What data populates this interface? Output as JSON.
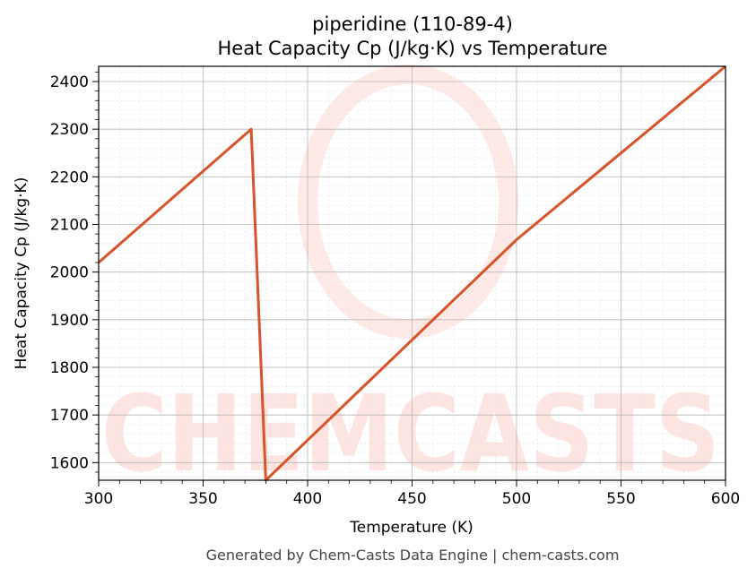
{
  "chart_data": {
    "type": "line",
    "title": "piperidine (110-89-4)",
    "subtitle": "Heat Capacity Cp (J/kg·K) vs Temperature",
    "xlabel": "Temperature (K)",
    "ylabel": "Heat Capacity Cp (J/kg·K)",
    "xlim": [
      300,
      600
    ],
    "ylim": [
      1563,
      2432
    ],
    "x_ticks": [
      300,
      350,
      400,
      450,
      500,
      550,
      600
    ],
    "y_ticks": [
      1600,
      1700,
      1800,
      1900,
      2000,
      2100,
      2200,
      2300,
      2400
    ],
    "grid": true,
    "series": [
      {
        "color": "#d9532a",
        "points": [
          [
            300,
            2020
          ],
          [
            373,
            2300
          ],
          [
            380,
            1563
          ],
          [
            500,
            2068
          ],
          [
            600,
            2432
          ]
        ]
      }
    ]
  },
  "watermark": {
    "text": "CHEMCASTS",
    "color": "#fde0db"
  },
  "footer": "Generated by Chem-Casts Data Engine | chem-casts.com"
}
